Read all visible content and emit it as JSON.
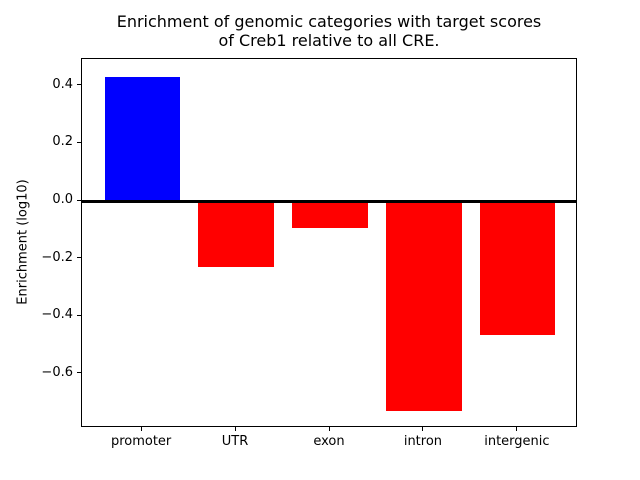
{
  "figure": {
    "title": "Enrichment of genomic categories with target scores\nof Creb1 relative to all CRE.",
    "ylabel": "Enrichment (log10)"
  },
  "chart_data": {
    "type": "bar",
    "title": "Enrichment of genomic categories with target scores\nof Creb1 relative to all CRE.",
    "categories": [
      "promoter",
      "UTR",
      "exon",
      "intron",
      "intergenic"
    ],
    "values": [
      0.43,
      -0.23,
      -0.095,
      -0.73,
      -0.465
    ],
    "bar_colors": [
      "#0000ff",
      "#ff0000",
      "#ff0000",
      "#ff0000",
      "#ff0000"
    ],
    "positive_color": "#0000ff",
    "negative_color": "#ff0000",
    "xlabel": "",
    "ylabel": "Enrichment (log10)",
    "ylim": [
      -0.788,
      0.493
    ],
    "yticks": [
      0.4,
      0.2,
      0.0,
      -0.2,
      -0.4,
      -0.6
    ],
    "ytick_labels": [
      "0.4",
      "0.2",
      "0.0",
      "−0.2",
      "−0.4",
      "−0.6"
    ],
    "bar_width_fraction": 0.8,
    "grid": false,
    "legend": null,
    "zero_line": true,
    "frame_color": "#000000",
    "background_color": "#ffffff"
  }
}
